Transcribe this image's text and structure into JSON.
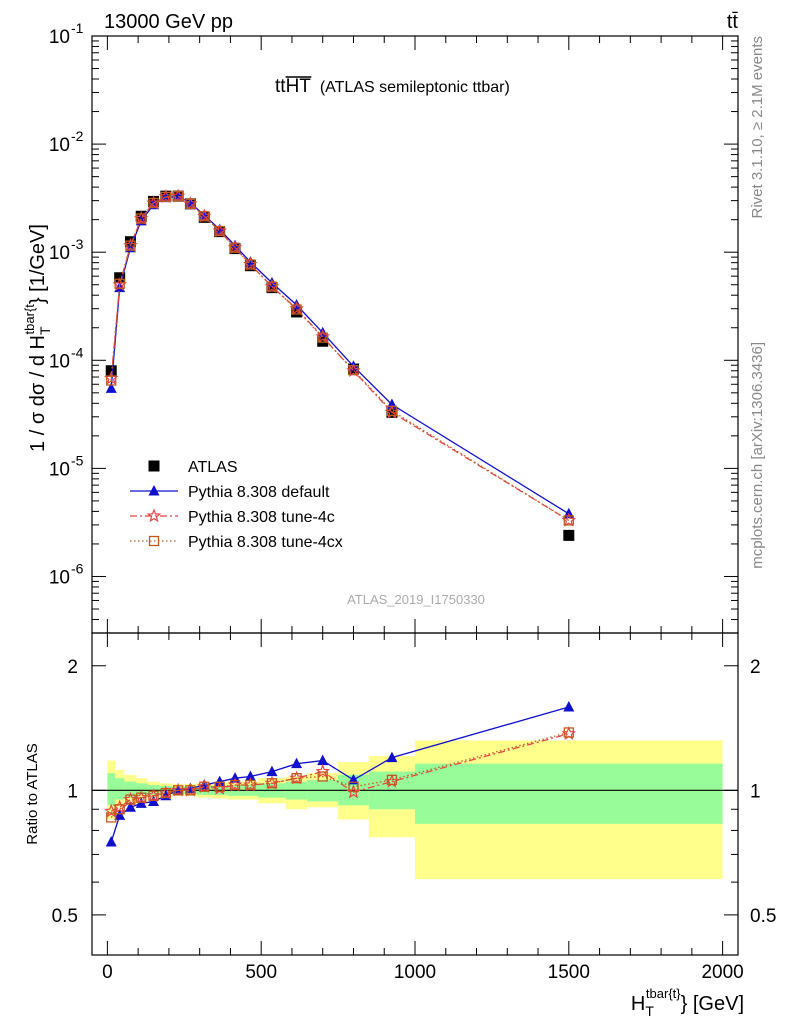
{
  "header": {
    "left_label": "13000 GeV pp",
    "right_label": "tt̄",
    "side_rivet": "Rivet 3.1.10, ≥ 2.1M events",
    "side_mcplots": "mcplots.cern.ch [arXiv:1306.3436]"
  },
  "chart_data": [
    {
      "type": "scatter",
      "title_main": "tt",
      "title_over": "HT",
      "title_rest": "(ATLAS semileptonic ttbar)",
      "analysis_label": "ATLAS_2019_I1750330",
      "ylabel": "1 / σ dσ / d H",
      "ylabel_sub": "T",
      "ylabel_sup": "tbar{t",
      "ylabel_tail": "} [1/GeV]",
      "yscale": "log",
      "ylim": [
        3e-07,
        0.1
      ],
      "xlim": [
        -50,
        2050
      ],
      "yticks": [
        {
          "v": 1e-06,
          "b": "10",
          "e": "-6"
        },
        {
          "v": 1e-05,
          "b": "10",
          "e": "-5"
        },
        {
          "v": 0.0001,
          "b": "10",
          "e": "-4"
        },
        {
          "v": 0.001,
          "b": "10",
          "e": "-3"
        },
        {
          "v": 0.01,
          "b": "10",
          "e": "-2"
        },
        {
          "v": 0.1,
          "b": "10",
          "e": "-1"
        }
      ],
      "legend_position": "lower-left",
      "x": [
        12.5,
        40,
        75,
        110,
        150,
        190,
        230,
        270,
        315,
        365,
        415,
        465,
        535,
        615,
        700,
        800,
        925,
        1500
      ],
      "series": [
        {
          "name": "ATLAS",
          "color": "#000000",
          "marker": "square",
          "values": [
            8e-05,
            0.00058,
            0.00125,
            0.00215,
            0.00295,
            0.0033,
            0.0033,
            0.0028,
            0.0021,
            0.00155,
            0.00108,
            0.00075,
            0.00047,
            0.00028,
            0.00015,
            8.3e-05,
            3.3e-05,
            2.4e-06
          ]
        },
        {
          "name": "Pythia 8.308 default",
          "color": "#1010cc",
          "marker": "triangle",
          "line": "solid",
          "values": [
            5.5e-05,
            0.00047,
            0.0011,
            0.00195,
            0.00275,
            0.0032,
            0.0033,
            0.00285,
            0.0022,
            0.00162,
            0.00115,
            0.00081,
            0.00052,
            0.000325,
            0.00018,
            8.8e-05,
            3.9e-05,
            3.8e-06
          ]
        },
        {
          "name": "Pythia 8.308 tune-4c",
          "color": "#e64545",
          "marker": "star",
          "line": "dashdot",
          "values": [
            6.8e-05,
            0.0005,
            0.00115,
            0.00205,
            0.00285,
            0.00325,
            0.0033,
            0.0028,
            0.00215,
            0.00157,
            0.0011,
            0.00077,
            0.00048,
            0.0003,
            0.000165,
            8e-05,
            3.3e-05,
            3.3e-06
          ]
        },
        {
          "name": "Pythia 8.308 tune-4cx",
          "color": "#c2591e",
          "marker": "open-square",
          "line": "dotted",
          "values": [
            6.5e-05,
            0.00051,
            0.00115,
            0.00205,
            0.00285,
            0.00325,
            0.0033,
            0.0028,
            0.00215,
            0.00157,
            0.0011,
            0.00077,
            0.00048,
            0.000295,
            0.000162,
            8.1e-05,
            3.4e-05,
            3.3e-06
          ]
        }
      ]
    },
    {
      "type": "scatter",
      "ylabel": "Ratio to ATLAS",
      "xlabel": "H",
      "xlabel_sub": "T",
      "xlabel_sup": "tbar{t}",
      "xlabel_tail": "} [GeV]",
      "yscale": "log",
      "ylim": [
        0.4,
        2.4
      ],
      "xlim": [
        -50,
        2050
      ],
      "yticks": [
        0.5,
        1,
        2
      ],
      "ytick_labels": [
        "0.5",
        "1",
        "2"
      ],
      "xticks": [
        0,
        500,
        1000,
        1500,
        2000
      ],
      "xtick_labels": [
        "0",
        "500",
        "1000",
        "1500",
        "2000"
      ],
      "reference_line": 1,
      "bands": [
        {
          "x0": 0,
          "x1": 25,
          "stat_lo": 0.92,
          "stat_hi": 1.1,
          "tot_lo": 0.85,
          "tot_hi": 1.18
        },
        {
          "x0": 25,
          "x1": 55,
          "stat_lo": 0.95,
          "stat_hi": 1.07,
          "tot_lo": 0.91,
          "tot_hi": 1.12
        },
        {
          "x0": 55,
          "x1": 95,
          "stat_lo": 0.96,
          "stat_hi": 1.05,
          "tot_lo": 0.93,
          "tot_hi": 1.09
        },
        {
          "x0": 95,
          "x1": 130,
          "stat_lo": 0.97,
          "stat_hi": 1.04,
          "tot_lo": 0.95,
          "tot_hi": 1.07
        },
        {
          "x0": 130,
          "x1": 170,
          "stat_lo": 0.975,
          "stat_hi": 1.03,
          "tot_lo": 0.96,
          "tot_hi": 1.05
        },
        {
          "x0": 170,
          "x1": 210,
          "stat_lo": 0.98,
          "stat_hi": 1.025,
          "tot_lo": 0.965,
          "tot_hi": 1.04
        },
        {
          "x0": 210,
          "x1": 250,
          "stat_lo": 0.98,
          "stat_hi": 1.02,
          "tot_lo": 0.97,
          "tot_hi": 1.035
        },
        {
          "x0": 250,
          "x1": 290,
          "stat_lo": 0.98,
          "stat_hi": 1.02,
          "tot_lo": 0.97,
          "tot_hi": 1.035
        },
        {
          "x0": 290,
          "x1": 340,
          "stat_lo": 0.975,
          "stat_hi": 1.025,
          "tot_lo": 0.96,
          "tot_hi": 1.04
        },
        {
          "x0": 340,
          "x1": 390,
          "stat_lo": 0.975,
          "stat_hi": 1.025,
          "tot_lo": 0.955,
          "tot_hi": 1.045
        },
        {
          "x0": 390,
          "x1": 440,
          "stat_lo": 0.97,
          "stat_hi": 1.03,
          "tot_lo": 0.95,
          "tot_hi": 1.05
        },
        {
          "x0": 440,
          "x1": 490,
          "stat_lo": 0.97,
          "stat_hi": 1.03,
          "tot_lo": 0.95,
          "tot_hi": 1.05
        },
        {
          "x0": 490,
          "x1": 580,
          "stat_lo": 0.96,
          "stat_hi": 1.04,
          "tot_lo": 0.93,
          "tot_hi": 1.07
        },
        {
          "x0": 580,
          "x1": 650,
          "stat_lo": 0.95,
          "stat_hi": 1.05,
          "tot_lo": 0.9,
          "tot_hi": 1.08
        },
        {
          "x0": 650,
          "x1": 750,
          "stat_lo": 0.94,
          "stat_hi": 1.06,
          "tot_lo": 0.91,
          "tot_hi": 1.1
        },
        {
          "x0": 750,
          "x1": 850,
          "stat_lo": 0.92,
          "stat_hi": 1.09,
          "tot_lo": 0.85,
          "tot_hi": 1.17
        },
        {
          "x0": 850,
          "x1": 1000,
          "stat_lo": 0.9,
          "stat_hi": 1.11,
          "tot_lo": 0.77,
          "tot_hi": 1.21
        },
        {
          "x0": 1000,
          "x1": 2000,
          "stat_lo": 0.83,
          "stat_hi": 1.16,
          "tot_lo": 0.61,
          "tot_hi": 1.32
        }
      ],
      "x": [
        12.5,
        40,
        75,
        110,
        150,
        190,
        230,
        270,
        315,
        365,
        415,
        465,
        535,
        615,
        700,
        800,
        925,
        1500
      ],
      "series": [
        {
          "name": "Pythia 8.308 default",
          "color": "#1010cc",
          "marker": "triangle",
          "line": "solid",
          "values": [
            0.75,
            0.87,
            0.91,
            0.93,
            0.94,
            0.97,
            1.0,
            1.01,
            1.03,
            1.05,
            1.07,
            1.08,
            1.11,
            1.16,
            1.18,
            1.06,
            1.2,
            1.59
          ]
        },
        {
          "name": "Pythia 8.308 tune-4c",
          "color": "#e64545",
          "marker": "star",
          "line": "dashdot",
          "values": [
            0.89,
            0.91,
            0.95,
            0.96,
            0.97,
            0.985,
            1.0,
            1.0,
            1.02,
            1.01,
            1.03,
            1.03,
            1.04,
            1.07,
            1.11,
            0.99,
            1.05,
            1.37
          ]
        },
        {
          "name": "Pythia 8.308 tune-4cx",
          "color": "#c2591e",
          "marker": "open-square",
          "line": "dotted",
          "values": [
            0.86,
            0.9,
            0.95,
            0.96,
            0.97,
            0.985,
            1.0,
            1.0,
            1.02,
            1.02,
            1.03,
            1.03,
            1.04,
            1.07,
            1.08,
            1.02,
            1.06,
            1.38
          ]
        }
      ]
    }
  ]
}
